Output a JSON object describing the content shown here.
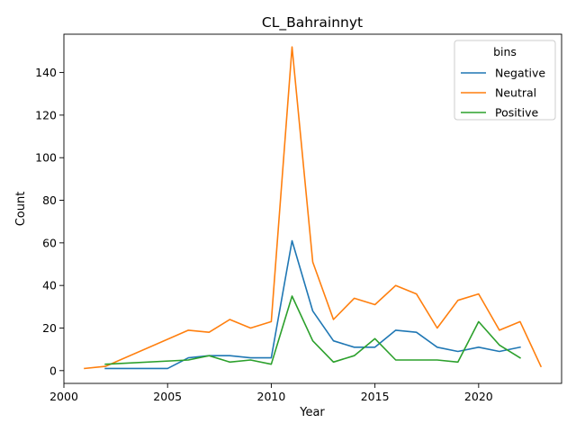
{
  "chart_data": {
    "type": "line",
    "title": "CL_Bahrainnyt",
    "xlabel": "Year",
    "ylabel": "Count",
    "xlim": [
      2000,
      2024
    ],
    "ylim": [
      -6,
      158
    ],
    "xticks": [
      2000,
      2005,
      2010,
      2015,
      2020
    ],
    "yticks": [
      0,
      20,
      40,
      60,
      80,
      100,
      120,
      140
    ],
    "grid": false,
    "legend": {
      "title": "bins",
      "placement": "top-right"
    },
    "series": [
      {
        "name": "Negative",
        "color": "#1f77b4",
        "x": [
          2002,
          2005,
          2006,
          2007,
          2008,
          2009,
          2010,
          2011,
          2012,
          2013,
          2014,
          2015,
          2016,
          2017,
          2018,
          2019,
          2020,
          2021,
          2022
        ],
        "y": [
          1,
          1,
          6,
          7,
          7,
          6,
          6,
          61,
          28,
          14,
          11,
          11,
          19,
          18,
          11,
          9,
          11,
          9,
          11
        ]
      },
      {
        "name": "Neutral",
        "color": "#ff7f0e",
        "x": [
          2001,
          2002,
          2006,
          2007,
          2008,
          2009,
          2010,
          2011,
          2012,
          2013,
          2014,
          2015,
          2016,
          2017,
          2018,
          2019,
          2020,
          2021,
          2022,
          2023
        ],
        "y": [
          1,
          2,
          19,
          18,
          24,
          20,
          23,
          152,
          51,
          24,
          34,
          31,
          40,
          36,
          20,
          33,
          36,
          19,
          23,
          2
        ]
      },
      {
        "name": "Positive",
        "color": "#2ca02c",
        "x": [
          2002,
          2006,
          2007,
          2008,
          2009,
          2010,
          2011,
          2012,
          2013,
          2014,
          2015,
          2016,
          2017,
          2018,
          2019,
          2020,
          2021,
          2022
        ],
        "y": [
          3,
          5,
          7,
          4,
          5,
          3,
          35,
          14,
          4,
          7,
          15,
          5,
          5,
          5,
          4,
          23,
          12,
          6
        ]
      }
    ]
  }
}
